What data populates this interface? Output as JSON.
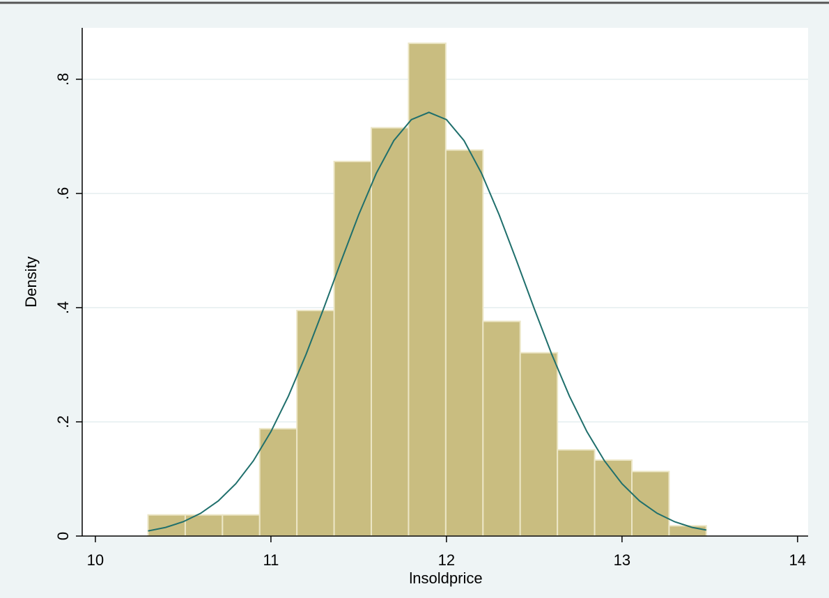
{
  "chart_data": {
    "type": "histogram",
    "xlabel": "lnsoldprice",
    "ylabel": "Density",
    "bins": [
      10.3,
      10.512,
      10.724,
      10.936,
      11.148,
      11.36,
      11.572,
      11.784,
      11.996,
      12.208,
      12.42,
      12.632,
      12.844,
      13.056,
      13.268,
      13.48
    ],
    "values": [
      0.037,
      0.037,
      0.037,
      0.188,
      0.395,
      0.656,
      0.715,
      0.863,
      0.676,
      0.376,
      0.321,
      0.151,
      0.133,
      0.113,
      0.018
    ],
    "color": "#c9bd80",
    "edgecolor": "#ece6c6",
    "curve": {
      "color": "#1f6f6c",
      "x": [
        10.3,
        10.4,
        10.5,
        10.6,
        10.7,
        10.8,
        10.9,
        11.0,
        11.1,
        11.2,
        11.3,
        11.4,
        11.5,
        11.6,
        11.7,
        11.8,
        11.9,
        12.0,
        12.1,
        12.2,
        12.3,
        12.4,
        12.5,
        12.6,
        12.7,
        12.8,
        12.9,
        13.0,
        13.1,
        13.2,
        13.3,
        13.4,
        13.48
      ],
      "values": [
        0.0089,
        0.0151,
        0.025,
        0.0399,
        0.0615,
        0.0916,
        0.1317,
        0.1828,
        0.2453,
        0.318,
        0.3982,
        0.4816,
        0.5627,
        0.6351,
        0.6925,
        0.7293,
        0.742,
        0.7293,
        0.6925,
        0.6351,
        0.5627,
        0.4816,
        0.3982,
        0.318,
        0.2453,
        0.1828,
        0.1317,
        0.0916,
        0.0615,
        0.0399,
        0.025,
        0.0151,
        0.0105
      ]
    },
    "xlim": [
      9.925,
      14.06
    ],
    "ylim": [
      0,
      0.89
    ],
    "xticks": [
      10,
      11,
      12,
      13,
      14
    ],
    "yticks": [
      0,
      {
        "value": 0.2,
        "label": ".2"
      },
      {
        "value": 0.4,
        "label": ".4"
      },
      {
        "value": 0.6,
        "label": ".6"
      },
      {
        "value": 0.8,
        "label": ".8"
      }
    ],
    "grid": true
  }
}
